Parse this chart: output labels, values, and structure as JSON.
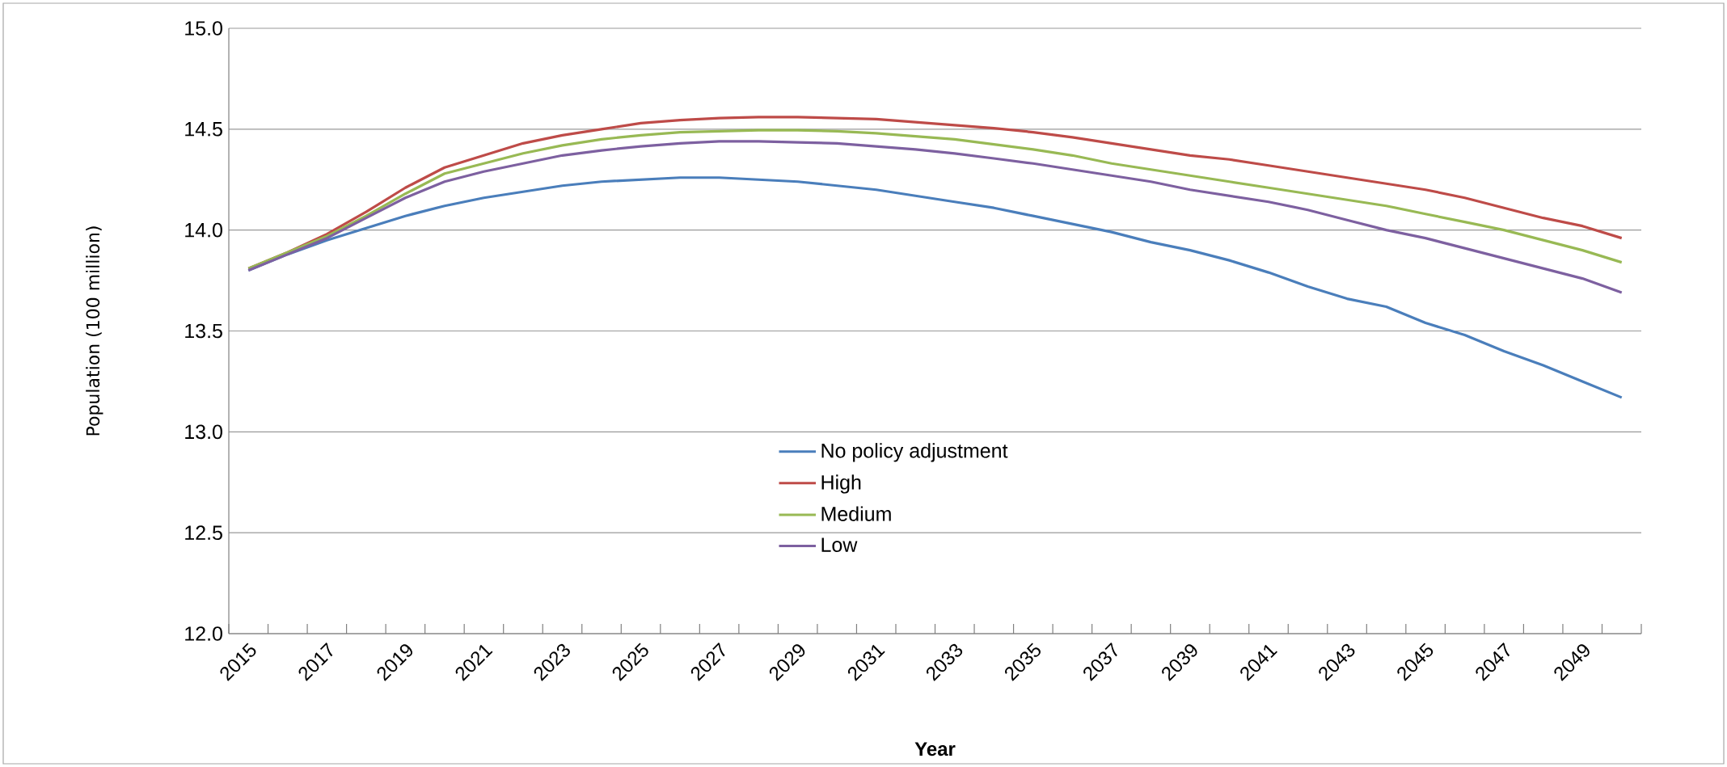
{
  "chart_data": {
    "type": "line",
    "xlabel": "Year",
    "ylabel": "Population (100 million)",
    "categories": [
      "2015",
      null,
      "2017",
      null,
      "2019",
      null,
      "2021",
      null,
      "2023",
      null,
      "2025",
      null,
      "2027",
      null,
      "2029",
      null,
      "2031",
      null,
      "2033",
      null,
      "2035",
      null,
      "2037",
      null,
      "2039",
      null,
      "2041",
      null,
      "2043",
      null,
      "2045",
      null,
      "2047",
      null,
      "2049",
      null
    ],
    "series": [
      {
        "name": "No policy adjustment",
        "color": "#4a7ebb",
        "values": [
          13.8,
          13.88,
          13.95,
          14.01,
          14.07,
          14.12,
          14.16,
          14.19,
          14.22,
          14.24,
          14.25,
          14.26,
          14.26,
          14.25,
          14.24,
          14.22,
          14.2,
          14.17,
          14.14,
          14.11,
          14.07,
          14.03,
          13.99,
          13.94,
          13.9,
          13.85,
          13.79,
          13.72,
          13.66,
          13.62,
          13.54,
          13.48,
          13.4,
          13.33,
          13.25,
          13.17
        ]
      },
      {
        "name": "High",
        "color": "#be4b48",
        "values": [
          13.81,
          13.89,
          13.98,
          14.09,
          14.21,
          14.31,
          14.37,
          14.43,
          14.47,
          14.5,
          14.53,
          14.545,
          14.555,
          14.56,
          14.56,
          14.555,
          14.55,
          14.535,
          14.52,
          14.505,
          14.485,
          14.46,
          14.43,
          14.4,
          14.37,
          14.35,
          14.32,
          14.29,
          14.26,
          14.23,
          14.2,
          14.16,
          14.11,
          14.06,
          14.02,
          13.96
        ]
      },
      {
        "name": "Medium",
        "color": "#98b954",
        "values": [
          13.81,
          13.89,
          13.97,
          14.07,
          14.18,
          14.28,
          14.33,
          14.38,
          14.42,
          14.45,
          14.47,
          14.485,
          14.49,
          14.495,
          14.495,
          14.49,
          14.48,
          14.465,
          14.45,
          14.425,
          14.4,
          14.37,
          14.33,
          14.3,
          14.27,
          14.24,
          14.21,
          14.18,
          14.15,
          14.12,
          14.08,
          14.04,
          14.0,
          13.95,
          13.9,
          13.84
        ]
      },
      {
        "name": "Low",
        "color": "#7d60a0",
        "values": [
          13.8,
          13.88,
          13.96,
          14.06,
          14.16,
          14.24,
          14.29,
          14.33,
          14.37,
          14.395,
          14.415,
          14.43,
          14.44,
          14.44,
          14.435,
          14.43,
          14.415,
          14.4,
          14.38,
          14.355,
          14.33,
          14.3,
          14.27,
          14.24,
          14.2,
          14.17,
          14.14,
          14.1,
          14.05,
          14.0,
          13.96,
          13.91,
          13.86,
          13.81,
          13.76,
          13.69
        ]
      }
    ],
    "ylim": [
      12.0,
      15.0
    ],
    "yticks": [
      {
        "value": 12.0,
        "label": "12.0"
      },
      {
        "value": 12.5,
        "label": "12.5"
      },
      {
        "value": 13.0,
        "label": "13.0"
      },
      {
        "value": 13.5,
        "label": "13.5"
      },
      {
        "value": 14.0,
        "label": "14.0"
      },
      {
        "value": 14.5,
        "label": "14.5"
      },
      {
        "value": 15.0,
        "label": "15.0"
      }
    ],
    "grid": "y",
    "legend": "bottom",
    "marker": "none",
    "line_style": "solid"
  }
}
